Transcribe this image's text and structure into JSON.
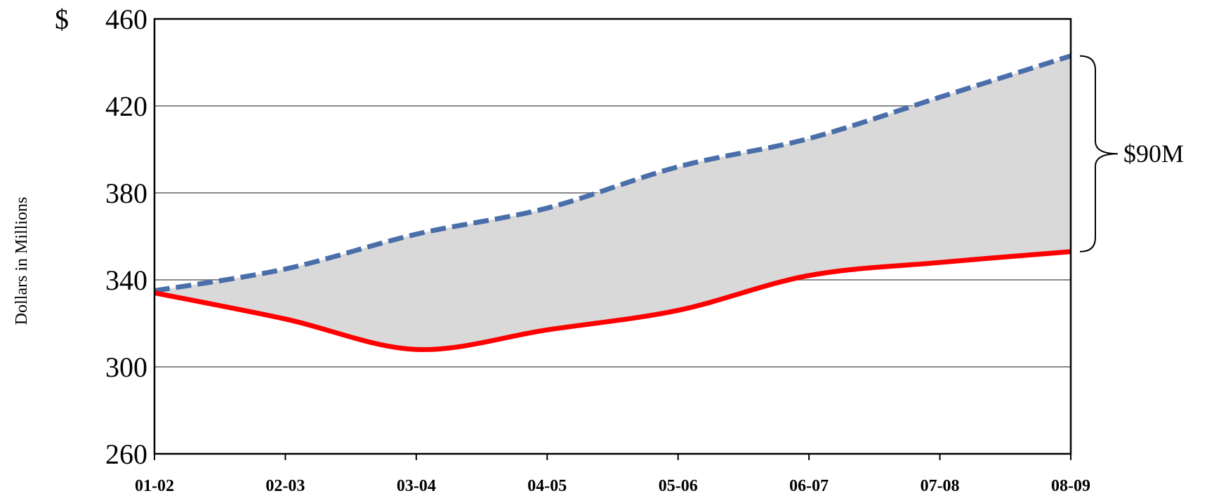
{
  "chart_data": {
    "type": "area",
    "categories": [
      "01-02",
      "02-03",
      "03-04",
      "04-05",
      "05-06",
      "06-07",
      "07-08",
      "08-09"
    ],
    "series": [
      {
        "values": [
          335,
          345,
          361,
          373,
          392,
          405,
          424,
          443
        ],
        "color": "#4a6ea9",
        "style": "dashed"
      },
      {
        "values": [
          334,
          322,
          308,
          317,
          326,
          342,
          348,
          353
        ],
        "color": "#ff0000",
        "style": "solid"
      }
    ],
    "fill_between_color": "#d9d9d9",
    "ylabel": "Dollars in Millions",
    "ylim": [
      260,
      460
    ],
    "yticks": [
      260,
      300,
      340,
      380,
      420,
      460
    ],
    "ytick_labels": [
      "260",
      "300",
      "340",
      "380",
      "420",
      "460"
    ],
    "y_top_prefix": "$",
    "grid": true,
    "annotation": {
      "text": "$90M",
      "from": 443,
      "to": 353
    }
  }
}
